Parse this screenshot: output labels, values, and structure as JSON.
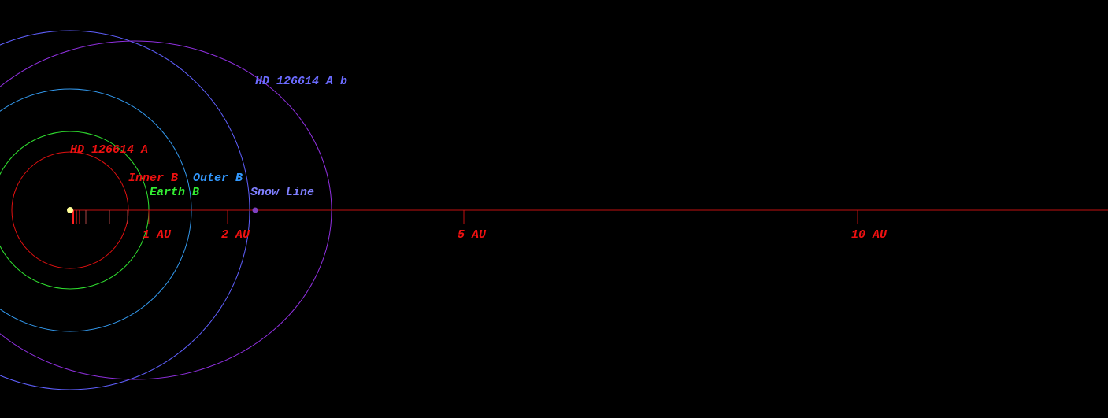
{
  "planet_label": "HD 126614 A b",
  "star_label": "HD 126614 A",
  "zones": {
    "inner": "Inner B",
    "outer": "Outer B",
    "earth": "Earth B",
    "snow": "Snow Line"
  },
  "scale": [
    "1 AU",
    "2 AU",
    "5 AU",
    "10 AU"
  ]
}
